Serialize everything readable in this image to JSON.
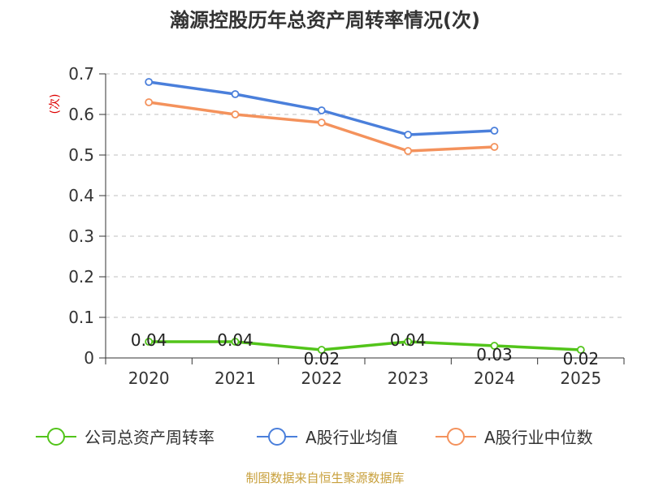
{
  "chart_data": {
    "type": "line",
    "title": "瀚源控股历年总资产周转率情况(次)",
    "ylabel": "(次)",
    "xlabel": "",
    "categories": [
      "2020",
      "2021",
      "2022",
      "2023",
      "2024",
      "2025"
    ],
    "ylim": [
      0,
      0.7
    ],
    "yticks": [
      "0",
      "0.1",
      "0.2",
      "0.3",
      "0.4",
      "0.5",
      "0.6",
      "0.7"
    ],
    "grid": "horizontal dashed",
    "legend_position": "bottom",
    "series": [
      {
        "name": "公司总资产周转率",
        "color": "#52c41a",
        "values": [
          0.04,
          0.04,
          0.02,
          0.04,
          0.03,
          0.02
        ],
        "labels": [
          "0.04",
          "0.04",
          "0.02",
          "0.04",
          "0.03",
          "0.02"
        ]
      },
      {
        "name": "A股行业均值",
        "color": "#4a7fdb",
        "values": [
          0.68,
          0.65,
          0.61,
          0.55,
          0.56,
          null
        ]
      },
      {
        "name": "A股行业中位数",
        "color": "#f4925c",
        "values": [
          0.63,
          0.6,
          0.58,
          0.51,
          0.52,
          null
        ]
      }
    ]
  },
  "footer": {
    "source": "制图数据来自恒生聚源数据库"
  }
}
